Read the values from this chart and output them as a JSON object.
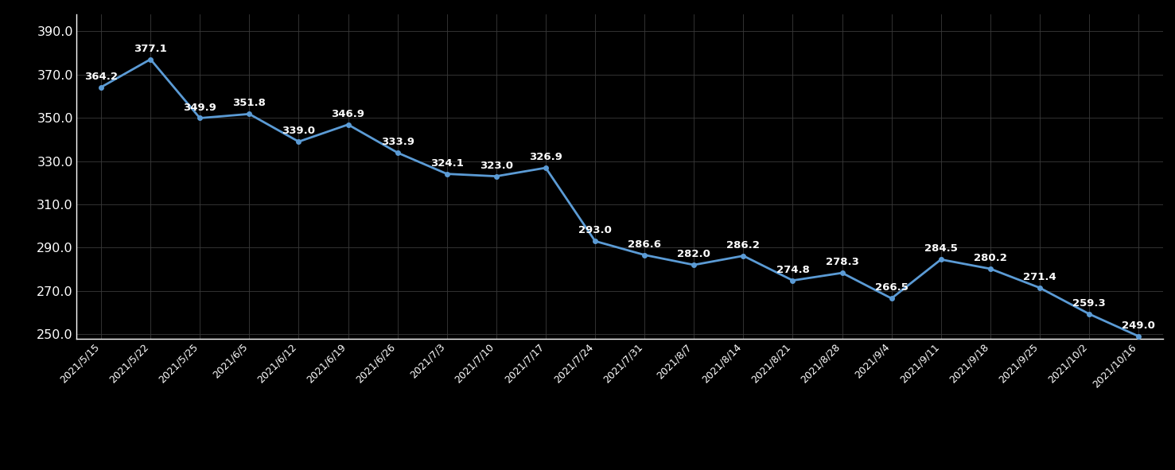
{
  "dates": [
    "2021/5/15",
    "2021/5/22",
    "2021/5/25",
    "2021/6/5",
    "2021/6/12",
    "2021/6/19",
    "2021/6/26",
    "2021/7/3",
    "2021/7/10",
    "2021/7/17",
    "2021/7/24",
    "2021/7/31",
    "2021/8/7",
    "2021/8/14",
    "2021/8/21",
    "2021/8/28",
    "2021/9/4",
    "2021/9/11",
    "2021/9/18",
    "2021/9/25",
    "2021/10/2",
    "2021/10/16"
  ],
  "values": [
    364.2,
    377.1,
    349.9,
    351.8,
    339.0,
    346.9,
    333.9,
    324.1,
    323.0,
    326.9,
    293.0,
    286.6,
    282.0,
    286.2,
    274.8,
    278.3,
    266.5,
    284.5,
    280.2,
    271.4,
    259.3,
    249.0
  ],
  "line_color": "#5b9bd5",
  "marker_color": "#5b9bd5",
  "background_color": "#000000",
  "text_color": "#ffffff",
  "grid_color": "#3a3a3a",
  "ylim": [
    248.0,
    398.0
  ],
  "yticks": [
    250.0,
    270.0,
    290.0,
    310.0,
    330.0,
    350.0,
    370.0,
    390.0
  ],
  "label_fontsize": 9.5,
  "tick_fontsize": 11.5,
  "xtick_fontsize": 9.0
}
